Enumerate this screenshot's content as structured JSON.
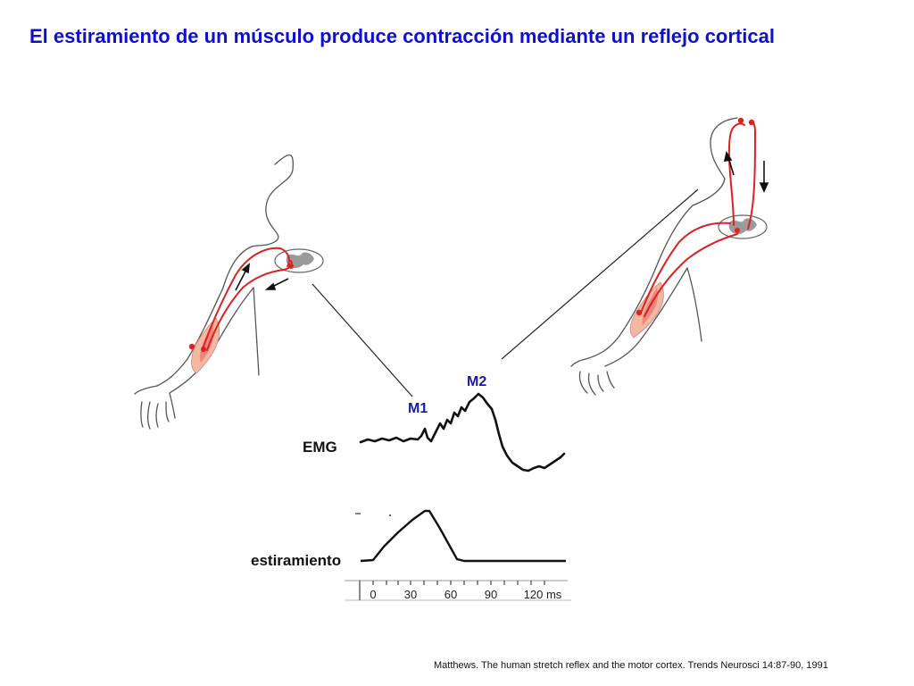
{
  "title": "El estiramiento de un músculo produce contracción mediante un reflejo cortical",
  "labels": {
    "m1": "M1",
    "m2": "M2",
    "emg": "EMG",
    "stretch": "estiramiento"
  },
  "time_axis": {
    "ticks": [
      "0",
      "30",
      "60",
      "90",
      "120 ms"
    ]
  },
  "reference": "Matthews.  The human stretch reflex and the motor cortex. Trends Neurosci  14:87-90, 1991",
  "colors": {
    "title": "#0f0fd2",
    "nerve": "#e02020",
    "trace": "#111111"
  }
}
